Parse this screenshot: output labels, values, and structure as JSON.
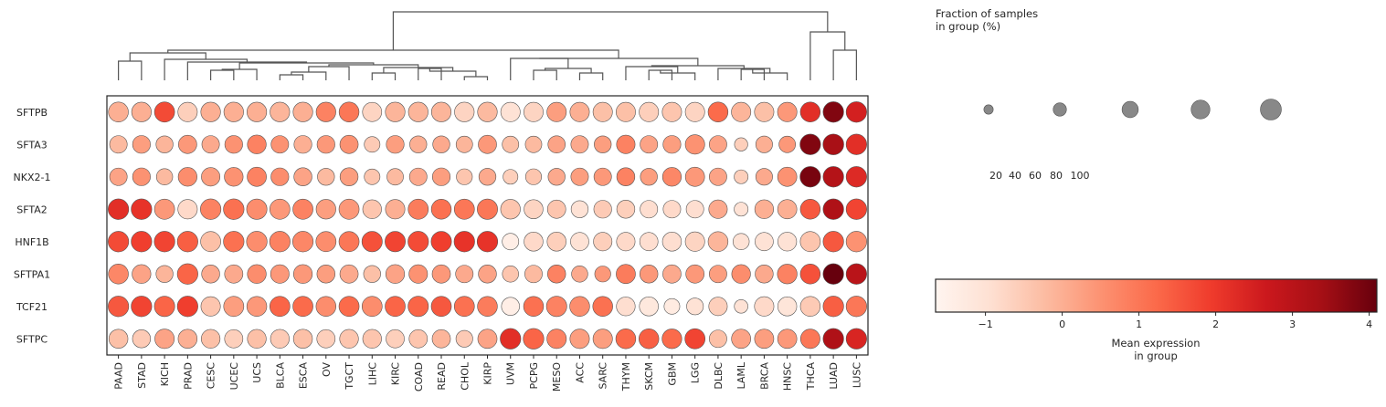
{
  "chart_data": {
    "type": "dotplot",
    "genes": [
      "SFTPB",
      "SFTA3",
      "NKX2-1",
      "SFTA2",
      "HNF1B",
      "SFTPA1",
      "TCF21",
      "SFTPC"
    ],
    "groups": [
      "PAAD",
      "STAD",
      "KICH",
      "PRAD",
      "CESC",
      "UCEC",
      "UCS",
      "BLCA",
      "ESCA",
      "OV",
      "TGCT",
      "LIHC",
      "KIRC",
      "COAD",
      "READ",
      "CHOL",
      "KIRP",
      "UVM",
      "PCPG",
      "MESO",
      "ACC",
      "SARC",
      "THYM",
      "SKCM",
      "GBM",
      "LGG",
      "DLBC",
      "LAML",
      "BRCA",
      "HNSC",
      "THCA",
      "LUAD",
      "LUSC"
    ],
    "fraction": [
      [
        90,
        88,
        92,
        86,
        88,
        88,
        88,
        88,
        88,
        88,
        90,
        84,
        88,
        88,
        88,
        88,
        88,
        86,
        86,
        86,
        86,
        86,
        86,
        86,
        86,
        86,
        90,
        86,
        86,
        86,
        90,
        96,
        96
      ],
      [
        70,
        72,
        66,
        76,
        70,
        72,
        80,
        70,
        72,
        72,
        76,
        56,
        72,
        66,
        66,
        62,
        76,
        62,
        62,
        68,
        70,
        66,
        78,
        70,
        72,
        86,
        70,
        40,
        64,
        62,
        96,
        98,
        96
      ],
      [
        70,
        72,
        60,
        80,
        78,
        80,
        84,
        72,
        74,
        66,
        74,
        56,
        62,
        70,
        72,
        58,
        66,
        50,
        58,
        66,
        70,
        70,
        74,
        66,
        80,
        84,
        70,
        44,
        64,
        84,
        96,
        96,
        96
      ],
      [
        96,
        96,
        92,
        86,
        96,
        96,
        94,
        92,
        92,
        88,
        92,
        80,
        86,
        92,
        90,
        92,
        94,
        88,
        82,
        76,
        66,
        72,
        74,
        70,
        70,
        70,
        78,
        44,
        80,
        84,
        90,
        96,
        96
      ],
      [
        96,
        96,
        96,
        96,
        92,
        96,
        96,
        96,
        96,
        92,
        92,
        94,
        94,
        96,
        94,
        96,
        96,
        62,
        82,
        82,
        76,
        78,
        78,
        76,
        82,
        86,
        90,
        60,
        76,
        80,
        92,
        96,
        96
      ],
      [
        90,
        80,
        66,
        96,
        74,
        76,
        80,
        78,
        80,
        74,
        76,
        66,
        80,
        78,
        76,
        70,
        74,
        60,
        70,
        74,
        60,
        58,
        84,
        74,
        76,
        76,
        70,
        80,
        74,
        88,
        90,
        96,
        96
      ],
      [
        96,
        96,
        94,
        96,
        86,
        92,
        90,
        92,
        92,
        90,
        92,
        92,
        92,
        94,
        92,
        92,
        90,
        74,
        90,
        94,
        90,
        90,
        80,
        82,
        56,
        64,
        78,
        42,
        86,
        82,
        90,
        96,
        96
      ],
      [
        82,
        74,
        86,
        82,
        80,
        76,
        80,
        80,
        82,
        76,
        80,
        80,
        76,
        76,
        76,
        64,
        84,
        96,
        96,
        86,
        86,
        86,
        90,
        90,
        88,
        92,
        70,
        84,
        84,
        84,
        86,
        96,
        96
      ]
    ],
    "expression": [
      [
        0.0,
        0.0,
        1.7,
        -0.6,
        0.0,
        0.0,
        0.0,
        -0.1,
        0.0,
        0.8,
        1.0,
        -0.7,
        -0.1,
        -0.1,
        -0.1,
        -0.7,
        -0.2,
        -1.0,
        -0.7,
        0.3,
        0.0,
        -0.3,
        -0.3,
        -0.6,
        -0.4,
        -0.7,
        1.2,
        -0.1,
        -0.3,
        0.4,
        2.2,
        3.8,
        2.5
      ],
      [
        -0.2,
        0.3,
        -0.1,
        0.4,
        0.1,
        0.5,
        0.8,
        0.5,
        0.0,
        0.4,
        0.5,
        -0.5,
        0.3,
        0.0,
        0.1,
        -0.1,
        0.4,
        -0.3,
        -0.2,
        0.2,
        0.1,
        0.3,
        0.8,
        0.2,
        0.3,
        0.5,
        0.2,
        -0.6,
        0.0,
        0.4,
        3.8,
        3.3,
        2.2
      ],
      [
        0.2,
        0.5,
        -0.2,
        0.6,
        0.3,
        0.5,
        0.8,
        0.6,
        0.2,
        -0.2,
        0.3,
        -0.4,
        -0.2,
        0.1,
        0.3,
        -0.4,
        0.1,
        -0.6,
        -0.4,
        0.1,
        0.3,
        0.4,
        0.8,
        0.3,
        0.7,
        0.4,
        0.2,
        -0.6,
        0.1,
        0.5,
        3.9,
        3.1,
        2.3
      ],
      [
        2.2,
        2.1,
        0.4,
        -0.8,
        0.8,
        1.1,
        0.6,
        0.4,
        0.8,
        0.3,
        0.4,
        -0.4,
        0.0,
        0.9,
        1.1,
        1.0,
        1.0,
        -0.4,
        -0.7,
        -0.4,
        -1.0,
        -0.5,
        -0.6,
        -0.9,
        -0.8,
        -0.9,
        0.1,
        -1.0,
        0.0,
        0.0,
        1.5,
        3.2,
        1.8
      ],
      [
        1.7,
        1.9,
        1.8,
        1.4,
        -0.3,
        1.1,
        0.6,
        0.8,
        0.7,
        0.6,
        1.0,
        1.6,
        1.8,
        1.7,
        1.9,
        2.1,
        2.1,
        -1.4,
        -0.8,
        -0.6,
        -1.0,
        -0.6,
        -0.8,
        -0.9,
        -0.9,
        -0.7,
        -0.1,
        -1.0,
        -1.0,
        -1.0,
        -0.4,
        1.5,
        0.5
      ],
      [
        0.7,
        0.2,
        -0.1,
        1.3,
        0.1,
        0.1,
        0.6,
        0.4,
        0.4,
        0.3,
        0.1,
        -0.3,
        0.2,
        0.5,
        0.4,
        0.1,
        0.2,
        -0.4,
        -0.2,
        0.8,
        0.1,
        0.4,
        0.9,
        0.4,
        0.1,
        0.4,
        0.3,
        0.6,
        0.1,
        0.8,
        1.6,
        4.1,
        3.0
      ],
      [
        1.5,
        1.8,
        1.3,
        1.9,
        -0.4,
        0.3,
        0.4,
        1.3,
        1.2,
        0.6,
        1.2,
        0.6,
        1.3,
        1.3,
        1.5,
        1.1,
        0.9,
        -1.4,
        1.1,
        0.8,
        0.6,
        1.1,
        -0.9,
        -1.2,
        -1.3,
        -1.0,
        -0.6,
        -1.0,
        -0.8,
        -1.1,
        -0.5,
        1.4,
        1.0
      ],
      [
        -0.3,
        -0.5,
        0.2,
        0.0,
        -0.3,
        -0.6,
        -0.3,
        -0.5,
        -0.3,
        -0.6,
        -0.4,
        -0.4,
        -0.6,
        -0.4,
        -0.1,
        -0.5,
        0.2,
        2.2,
        1.3,
        0.8,
        0.3,
        0.3,
        1.2,
        1.4,
        1.2,
        1.8,
        -0.3,
        0.2,
        0.3,
        0.4,
        1.0,
        3.2,
        2.4
      ]
    ],
    "size_legend": {
      "title_lines": [
        "Fraction of samples",
        "in group (%)"
      ],
      "values": [
        20,
        40,
        60,
        80,
        100
      ],
      "labels": [
        "20",
        "40",
        "60",
        "80",
        "100"
      ]
    },
    "colorbar": {
      "label_lines": [
        "Mean expression",
        "in group"
      ],
      "vmin": -1.65,
      "vmax": 4.1,
      "ticks": [
        -1,
        0,
        1,
        2,
        3,
        4
      ],
      "tick_labels": [
        "−1",
        "0",
        "1",
        "2",
        "3",
        "4"
      ],
      "colormap": [
        "#fff5f0",
        "#fee0d2",
        "#fcbba1",
        "#fc9272",
        "#fb6a4a",
        "#ef3b2c",
        "#cb181d",
        "#a50f15",
        "#67000d"
      ]
    },
    "dendrogram_color": "#555555",
    "dot_color_legend": "#888888"
  }
}
